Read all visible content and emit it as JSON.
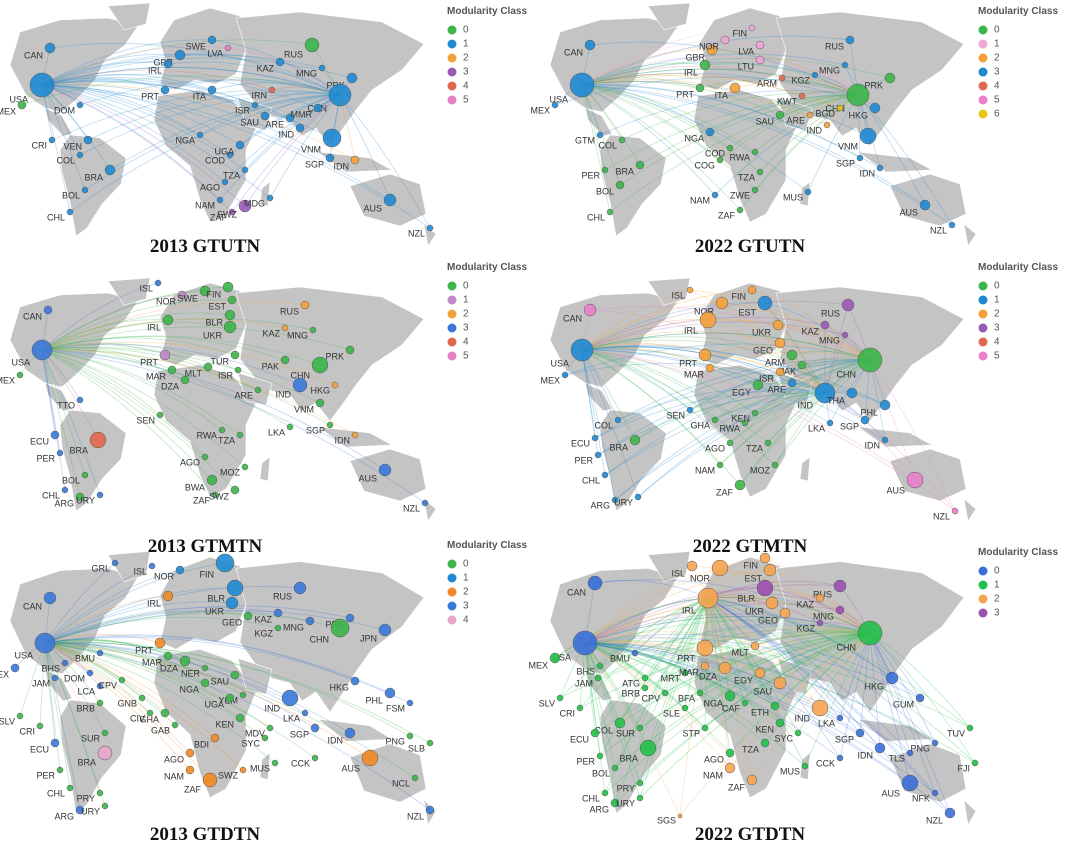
{
  "panels": [
    {
      "title": "2013 GTUTN",
      "legend_title": "Modularity Class",
      "legend": [
        {
          "label": "0",
          "color": "#3cb54a"
        },
        {
          "label": "1",
          "color": "#1f8ad1"
        },
        {
          "label": "2",
          "color": "#f4a13a"
        },
        {
          "label": "3",
          "color": "#9b59b6"
        },
        {
          "label": "4",
          "color": "#e0684f"
        },
        {
          "label": "5",
          "color": "#e87fc9"
        }
      ],
      "labels": [
        "CAN",
        "USA",
        "MEX",
        "GBR",
        "IRL",
        "SWE",
        "LVA",
        "RUS",
        "KAZ",
        "MNG",
        "PRK",
        "ITA",
        "PRT",
        "IRN",
        "CHN",
        "ISR",
        "SAU",
        "ARE",
        "IND",
        "MMR",
        "VNM",
        "DOM",
        "CRI",
        "VEN",
        "COL",
        "BRA",
        "BOL",
        "CHL",
        "NGA",
        "COD",
        "UGA",
        "TZA",
        "AGO",
        "NAM",
        "ZAF",
        "SWZ",
        "MDG",
        "SGP",
        "IDN",
        "AUS",
        "NZL"
      ],
      "classes": [
        1,
        1,
        0,
        1,
        1,
        1,
        5,
        0,
        1,
        1,
        1,
        1,
        1,
        4,
        1,
        1,
        1,
        1,
        1,
        1,
        1,
        1,
        1,
        1,
        1,
        1,
        1,
        1,
        1,
        1,
        1,
        1,
        1,
        1,
        3,
        3,
        1,
        1,
        2,
        1,
        1
      ]
    },
    {
      "title": "2022 GTUTN",
      "legend_title": "Modularity Class",
      "legend": [
        {
          "label": "0",
          "color": "#3cb54a"
        },
        {
          "label": "1",
          "color": "#f0a6d8"
        },
        {
          "label": "2",
          "color": "#f4a13a"
        },
        {
          "label": "3",
          "color": "#1f8ad1"
        },
        {
          "label": "4",
          "color": "#e0684f"
        },
        {
          "label": "5",
          "color": "#e87fc9"
        },
        {
          "label": "6",
          "color": "#e8c61a"
        }
      ],
      "labels": [
        "CAN",
        "USA",
        "MEX",
        "GBR",
        "NOR",
        "FIN",
        "LVA",
        "LTU",
        "IRL",
        "PRT",
        "ITA",
        "RUS",
        "KGZ",
        "MNG",
        "ARM",
        "KWT",
        "CHN",
        "PRK",
        "BGD",
        "HKG",
        "ARE",
        "IND",
        "SAU",
        "VNM",
        "SGP",
        "IDN",
        "NGA",
        "COD",
        "RWA",
        "COG",
        "TZA",
        "ZWE",
        "MUS",
        "NAM",
        "ZAF",
        "GTM",
        "COL",
        "PER",
        "BRA",
        "BOL",
        "CHL",
        "AUS",
        "NZL"
      ],
      "classes": [
        3,
        3,
        3,
        2,
        1,
        1,
        1,
        1,
        0,
        0,
        2,
        3,
        3,
        3,
        4,
        4,
        0,
        0,
        6,
        3,
        2,
        2,
        0,
        3,
        3,
        3,
        3,
        0,
        0,
        0,
        0,
        0,
        3,
        3,
        0,
        3,
        0,
        0,
        0,
        0,
        0,
        3,
        3
      ]
    },
    {
      "title": "2013 GTMTN",
      "legend_title": "Modularity Class",
      "legend": [
        {
          "label": "0",
          "color": "#3cb54a"
        },
        {
          "label": "1",
          "color": "#c088c8"
        },
        {
          "label": "2",
          "color": "#f4a13a"
        },
        {
          "label": "3",
          "color": "#3a78d8"
        },
        {
          "label": "4",
          "color": "#e0684f"
        },
        {
          "label": "5",
          "color": "#e87fc9"
        }
      ],
      "labels": [
        "CAN",
        "USA",
        "MEX",
        "ISL",
        "NOR",
        "SWE",
        "FIN",
        "EST",
        "BLR",
        "UKR",
        "IRL",
        "PRT",
        "MAR",
        "DZA",
        "MLT",
        "TUR",
        "ISR",
        "RUS",
        "KAZ",
        "MNG",
        "PAK",
        "CHN",
        "PRK",
        "HKG",
        "ARE",
        "IND",
        "VNM",
        "SGP",
        "IDN",
        "LKA",
        "TTO",
        "SEN",
        "RWA",
        "TZA",
        "AGO",
        "MOZ",
        "BWA",
        "ZAF",
        "SWZ",
        "ECU",
        "BRA",
        "PER",
        "BOL",
        "CHL",
        "ARG",
        "URY",
        "AUS",
        "NZL"
      ],
      "classes": [
        3,
        3,
        0,
        3,
        1,
        0,
        0,
        0,
        0,
        0,
        0,
        1,
        0,
        0,
        0,
        0,
        0,
        2,
        2,
        0,
        0,
        0,
        0,
        2,
        0,
        3,
        0,
        0,
        2,
        0,
        3,
        0,
        0,
        0,
        0,
        0,
        0,
        0,
        0,
        3,
        4,
        3,
        0,
        3,
        0,
        3,
        3,
        3
      ]
    },
    {
      "title": "2022 GTMTN",
      "legend_title": "Modularity Class",
      "legend": [
        {
          "label": "0",
          "color": "#3cb54a"
        },
        {
          "label": "1",
          "color": "#1f8ad1"
        },
        {
          "label": "2",
          "color": "#f4a13a"
        },
        {
          "label": "3",
          "color": "#9b59b6"
        },
        {
          "label": "4",
          "color": "#e0684f"
        },
        {
          "label": "5",
          "color": "#e87fc9"
        }
      ],
      "labels": [
        "CAN",
        "USA",
        "MEX",
        "ISL",
        "NOR",
        "FIN",
        "EST",
        "IRL",
        "UKR",
        "RUS",
        "KAZ",
        "MNG",
        "GEO",
        "ARM",
        "PAK",
        "CHN",
        "PRT",
        "MAR",
        "EGY",
        "ISR",
        "ARE",
        "IND",
        "THA",
        "PHL",
        "SGP",
        "IDN",
        "LKA",
        "SEN",
        "GHA",
        "RWA",
        "KEN",
        "TZA",
        "AGO",
        "MOZ",
        "NAM",
        "ZAF",
        "COL",
        "ECU",
        "BRA",
        "PER",
        "CHL",
        "ARG",
        "URY",
        "AUS",
        "NZL"
      ],
      "classes": [
        5,
        1,
        1,
        2,
        2,
        2,
        1,
        2,
        2,
        3,
        3,
        3,
        2,
        0,
        0,
        0,
        2,
        2,
        0,
        2,
        1,
        1,
        1,
        1,
        1,
        1,
        1,
        1,
        0,
        0,
        0,
        0,
        0,
        0,
        0,
        0,
        1,
        1,
        0,
        1,
        1,
        1,
        1,
        5,
        5
      ]
    },
    {
      "title": "2013 GTDTN",
      "legend_title": "Modularity Class",
      "legend": [
        {
          "label": "0",
          "color": "#3cb54a"
        },
        {
          "label": "1",
          "color": "#1f8ad1"
        },
        {
          "label": "2",
          "color": "#f08a24"
        },
        {
          "label": "3",
          "color": "#3a78d8"
        },
        {
          "label": "4",
          "color": "#e8a6cc"
        }
      ],
      "labels": [
        "GRL",
        "ISL",
        "NOR",
        "FIN",
        "CAN",
        "IRL",
        "BLR",
        "UKR",
        "GEO",
        "KAZ",
        "RUS",
        "MNG",
        "KGZ",
        "PRK",
        "CHN",
        "JPN",
        "USA",
        "BMU",
        "MEX",
        "BHS",
        "JAM",
        "DOM",
        "LCA",
        "SLV",
        "CRI",
        "BRB",
        "PRT",
        "MAR",
        "DZA",
        "CPV",
        "NER",
        "NGA",
        "GNB",
        "CIV",
        "GHA",
        "SAU",
        "YEM",
        "UGA",
        "GAB",
        "KEN",
        "BDI",
        "AGO",
        "NAM",
        "SWZ",
        "ZAF",
        "MDV",
        "SYC",
        "MUS",
        "IND",
        "LKA",
        "SGP",
        "IDN",
        "CCK",
        "HKG",
        "PHL",
        "FSM",
        "PNG",
        "SLB",
        "AUS",
        "NCL",
        "NZL",
        "SUR",
        "BRA",
        "ECU",
        "PER",
        "CHL",
        "PRY",
        "ARG",
        "URY"
      ],
      "classes": [
        3,
        3,
        1,
        1,
        3,
        2,
        1,
        1,
        0,
        3,
        3,
        3,
        0,
        3,
        0,
        3,
        3,
        3,
        3,
        3,
        3,
        3,
        3,
        0,
        0,
        0,
        2,
        0,
        0,
        0,
        0,
        0,
        0,
        0,
        0,
        0,
        0,
        0,
        0,
        0,
        2,
        2,
        2,
        2,
        2,
        0,
        0,
        0,
        3,
        3,
        3,
        3,
        0,
        3,
        3,
        3,
        0,
        0,
        2,
        0,
        3,
        0,
        4,
        3,
        0,
        0,
        0,
        3,
        0
      ]
    },
    {
      "title": "2022 GTDTN",
      "legend_title": "Modularity Class",
      "legend": [
        {
          "label": "0",
          "color": "#3a6fd8"
        },
        {
          "label": "1",
          "color": "#22c04a"
        },
        {
          "label": "2",
          "color": "#f6a450"
        },
        {
          "label": "3",
          "color": "#9b4fb0"
        }
      ],
      "labels": [
        "ISL",
        "NOR",
        "FIN",
        "EST",
        "CAN",
        "IRL",
        "BLR",
        "UKR",
        "RUS",
        "KAZ",
        "GEO",
        "MNG",
        "KGZ",
        "CHN",
        "USA",
        "MEX",
        "BMU",
        "BHS",
        "JAM",
        "SLV",
        "CRI",
        "ATG",
        "BRB",
        "CPV",
        "PRT",
        "MLT",
        "MRT",
        "MAR",
        "DZA",
        "EGY",
        "SAU",
        "BFA",
        "NGA",
        "SLE",
        "CAF",
        "ETH",
        "IND",
        "KEN",
        "SYC",
        "STP",
        "AGO",
        "TZA",
        "NAM",
        "ZAF",
        "MUS",
        "CCK",
        "LKA",
        "SGP",
        "IDN",
        "TLS",
        "HKG",
        "GUM",
        "PNG",
        "TUV",
        "FJI",
        "AUS",
        "NFK",
        "NZL",
        "SUR",
        "COL",
        "ECU",
        "BRA",
        "PER",
        "BOL",
        "PRY",
        "CHL",
        "ARG",
        "URY",
        "SGS"
      ],
      "classes": [
        2,
        2,
        2,
        2,
        0,
        2,
        3,
        2,
        3,
        2,
        2,
        3,
        3,
        1,
        0,
        1,
        0,
        1,
        1,
        1,
        1,
        1,
        1,
        1,
        2,
        2,
        1,
        2,
        2,
        2,
        2,
        1,
        1,
        1,
        1,
        1,
        2,
        1,
        1,
        1,
        1,
        1,
        2,
        2,
        1,
        0,
        0,
        0,
        0,
        0,
        0,
        0,
        0,
        1,
        1,
        0,
        0,
        0,
        1,
        1,
        1,
        1,
        1,
        1,
        1,
        1,
        1,
        1,
        2
      ]
    }
  ]
}
